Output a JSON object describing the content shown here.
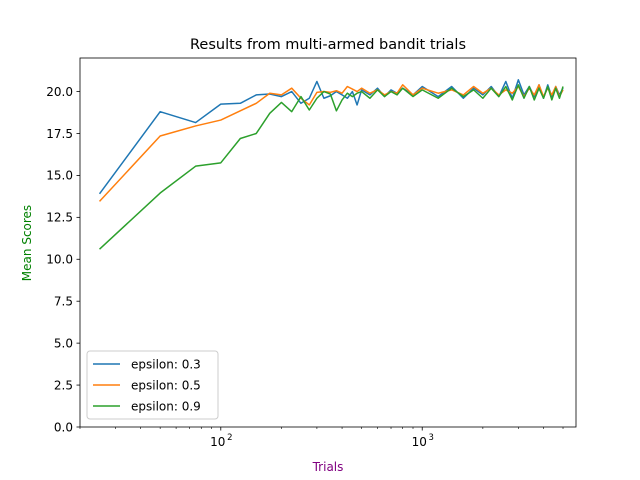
{
  "chart_data": {
    "type": "line",
    "title": "Results from multi-armed bandit trials",
    "xlabel": "Trials",
    "ylabel": "Mean Scores",
    "xlabel_color": "#800080",
    "ylabel_color": "#008000",
    "xscale": "log",
    "xlim": [
      20,
      5800
    ],
    "ylim": [
      0,
      22
    ],
    "yticks": [
      0.0,
      2.5,
      5.0,
      7.5,
      10.0,
      12.5,
      15.0,
      17.5,
      20.0
    ],
    "ytick_labels": [
      "0.0",
      "2.5",
      "5.0",
      "7.5",
      "10.0",
      "12.5",
      "15.0",
      "17.5",
      "20.0"
    ],
    "xtick_labels": [
      {
        "value": 100,
        "base": "10",
        "exp": "2"
      },
      {
        "value": 1000,
        "base": "10",
        "exp": "3"
      }
    ],
    "grid": false,
    "legend_position": "lower-left",
    "series": [
      {
        "name": "epsilon: 0.3",
        "color": "#1f77b4",
        "x": [
          25,
          50,
          75,
          100,
          125,
          150,
          175,
          200,
          225,
          250,
          275,
          300,
          325,
          350,
          375,
          400,
          425,
          450,
          475,
          500,
          550,
          600,
          650,
          700,
          750,
          800,
          900,
          1000,
          1200,
          1400,
          1600,
          1800,
          2000,
          2200,
          2400,
          2600,
          2800,
          3000,
          3200,
          3400,
          3600,
          3800,
          4000,
          4200,
          4400,
          4600,
          4800,
          5000
        ],
        "y": [
          13.9,
          18.8,
          18.15,
          19.25,
          19.3,
          19.8,
          19.85,
          19.7,
          20.0,
          19.3,
          19.6,
          20.6,
          19.6,
          19.75,
          20.0,
          19.8,
          19.6,
          20.0,
          19.2,
          20.1,
          19.8,
          20.2,
          19.7,
          20.1,
          19.9,
          20.2,
          19.8,
          20.3,
          19.7,
          20.3,
          19.6,
          20.2,
          19.8,
          20.3,
          19.7,
          20.6,
          19.6,
          20.7,
          19.8,
          20.3,
          19.7,
          20.4,
          19.6,
          20.4,
          19.7,
          20.3,
          19.8,
          20.2
        ]
      },
      {
        "name": "epsilon: 0.5",
        "color": "#ff7f0e",
        "x": [
          25,
          50,
          75,
          100,
          125,
          150,
          175,
          200,
          225,
          250,
          275,
          300,
          325,
          350,
          375,
          400,
          425,
          450,
          475,
          500,
          550,
          600,
          650,
          700,
          750,
          800,
          900,
          1000,
          1200,
          1400,
          1600,
          1800,
          2000,
          2200,
          2400,
          2600,
          2800,
          3000,
          3200,
          3400,
          3600,
          3800,
          4000,
          4200,
          4400,
          4600,
          4800,
          5000
        ],
        "y": [
          13.45,
          17.35,
          17.95,
          18.3,
          18.85,
          19.3,
          19.9,
          19.8,
          20.2,
          19.6,
          19.2,
          19.95,
          20.0,
          19.95,
          20.05,
          19.9,
          20.3,
          20.15,
          20.0,
          20.2,
          19.9,
          20.1,
          19.8,
          20.0,
          19.9,
          20.4,
          19.8,
          20.2,
          19.9,
          20.1,
          19.8,
          20.3,
          19.9,
          20.2,
          19.8,
          20.1,
          19.9,
          20.3,
          19.7,
          20.2,
          19.8,
          20.4,
          19.7,
          20.2,
          19.8,
          20.3,
          19.7,
          20.1
        ]
      },
      {
        "name": "epsilon: 0.9",
        "color": "#2ca02c",
        "x": [
          25,
          50,
          75,
          100,
          125,
          150,
          175,
          200,
          225,
          250,
          275,
          300,
          325,
          350,
          375,
          400,
          425,
          450,
          475,
          500,
          550,
          600,
          650,
          700,
          750,
          800,
          900,
          1000,
          1200,
          1400,
          1600,
          1800,
          2000,
          2200,
          2400,
          2600,
          2800,
          3000,
          3200,
          3400,
          3600,
          3800,
          4000,
          4200,
          4400,
          4600,
          4800,
          5000
        ],
        "y": [
          10.6,
          13.95,
          15.55,
          15.75,
          17.2,
          17.5,
          18.7,
          19.35,
          18.8,
          19.7,
          18.9,
          19.6,
          20.0,
          19.85,
          18.85,
          19.5,
          19.9,
          19.7,
          19.9,
          20.0,
          19.6,
          20.1,
          19.7,
          20.0,
          19.8,
          20.2,
          19.7,
          20.1,
          19.6,
          20.2,
          19.7,
          20.1,
          19.6,
          20.2,
          19.7,
          20.3,
          19.5,
          20.4,
          19.6,
          20.3,
          19.5,
          20.2,
          19.6,
          20.3,
          19.5,
          20.2,
          19.6,
          20.3
        ]
      }
    ]
  }
}
